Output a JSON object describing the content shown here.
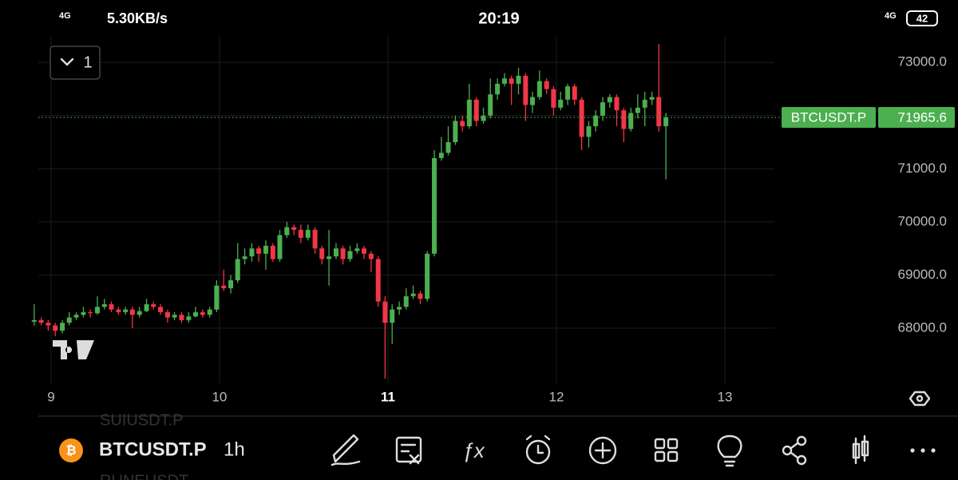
{
  "status_bar": {
    "network": "4G",
    "speed": "5.30KB/s",
    "time": "20:19",
    "network_right": "4G",
    "battery": "42"
  },
  "toolbar": {
    "interval_button": "1",
    "symbol": "BTCUSDT.P",
    "interval": "1h",
    "ghost_above": "SUIUSDT.P",
    "ghost_below": "RUNEUSDT"
  },
  "chart_data": {
    "type": "candlestick",
    "up_color": "#4caf50",
    "down_color": "#f23645",
    "grid": true,
    "xlim": [
      8.697,
      13.294
    ],
    "xticks": [
      9,
      10,
      11,
      12,
      13
    ],
    "bold_xtick": 11,
    "ylim": [
      66960,
      73500
    ],
    "yticks": [
      {
        "value": 68000,
        "label": "68000.0"
      },
      {
        "value": 69000,
        "label": "69000.0"
      },
      {
        "value": 70000,
        "label": "70000.0"
      },
      {
        "value": 71000,
        "label": "71000.0"
      },
      {
        "value": 72000,
        "label": "72000.0"
      },
      {
        "value": 73000,
        "label": "73000.0"
      }
    ],
    "price_line": {
      "value": 71965.6,
      "label": "BTCUSDT.P",
      "color": "#4caf50"
    },
    "x": [
      8.9,
      8.942,
      8.983,
      9.025,
      9.067,
      9.108,
      9.15,
      9.192,
      9.233,
      9.275,
      9.317,
      9.358,
      9.4,
      9.442,
      9.483,
      9.525,
      9.567,
      9.608,
      9.65,
      9.692,
      9.733,
      9.775,
      9.817,
      9.858,
      9.9,
      9.942,
      9.983,
      10.025,
      10.067,
      10.108,
      10.15,
      10.192,
      10.233,
      10.275,
      10.317,
      10.358,
      10.4,
      10.442,
      10.483,
      10.525,
      10.567,
      10.608,
      10.65,
      10.692,
      10.733,
      10.775,
      10.817,
      10.858,
      10.9,
      10.942,
      10.983,
      11.025,
      11.067,
      11.108,
      11.15,
      11.192,
      11.233,
      11.275,
      11.317,
      11.358,
      11.4,
      11.442,
      11.483,
      11.525,
      11.567,
      11.608,
      11.65,
      11.692,
      11.733,
      11.775,
      11.817,
      11.858,
      11.9,
      11.942,
      11.983,
      12.025,
      12.067,
      12.108,
      12.15,
      12.192,
      12.233,
      12.275,
      12.317,
      12.358,
      12.4,
      12.442,
      12.483,
      12.525,
      12.567,
      12.608,
      12.65
    ],
    "open": [
      68120,
      68150,
      68100,
      68050,
      67950,
      68100,
      68200,
      68250,
      68300,
      68280,
      68400,
      68450,
      68350,
      68300,
      68350,
      68250,
      68320,
      68450,
      68400,
      68300,
      68200,
      68250,
      68150,
      68220,
      68300,
      68250,
      68350,
      68800,
      68750,
      68900,
      69300,
      69350,
      69500,
      69400,
      69550,
      69300,
      69750,
      69900,
      69850,
      69700,
      69850,
      69500,
      69300,
      69350,
      69500,
      69300,
      69450,
      69500,
      69400,
      69300,
      68500,
      68100,
      68350,
      68400,
      68600,
      68650,
      68550,
      69400,
      71200,
      71300,
      71500,
      71900,
      71800,
      72300,
      71900,
      72000,
      72400,
      72600,
      72700,
      72600,
      72750,
      72200,
      72350,
      72650,
      72500,
      72150,
      72300,
      72550,
      72300,
      71600,
      71800,
      72000,
      72250,
      72350,
      72100,
      71750,
      72050,
      72150,
      72300,
      72350,
      71800
    ],
    "high": [
      68450,
      68200,
      68150,
      68100,
      68150,
      68300,
      68300,
      68400,
      68350,
      68600,
      68550,
      68500,
      68400,
      68400,
      68400,
      68400,
      68550,
      68500,
      68450,
      68350,
      68300,
      68300,
      68300,
      68400,
      68350,
      68400,
      68900,
      69100,
      69000,
      69600,
      69500,
      69600,
      69550,
      69650,
      69600,
      69850,
      70000,
      69950,
      69950,
      69950,
      69900,
      69550,
      69850,
      69600,
      69550,
      69550,
      69600,
      69550,
      69450,
      69350,
      68600,
      68450,
      68500,
      68750,
      68800,
      68700,
      69450,
      71350,
      71600,
      71800,
      72000,
      72000,
      72600,
      72350,
      72150,
      72700,
      72700,
      72800,
      72750,
      72900,
      72800,
      72450,
      72850,
      72700,
      72550,
      72450,
      72600,
      72600,
      72350,
      71900,
      72100,
      72350,
      72400,
      72400,
      72150,
      72150,
      72400,
      72450,
      72450,
      73350,
      72050
    ],
    "low": [
      68050,
      68050,
      67950,
      67850,
      67900,
      68050,
      68150,
      68200,
      68200,
      68250,
      68350,
      68300,
      68250,
      68250,
      68000,
      68200,
      68300,
      68350,
      68250,
      68100,
      68150,
      68100,
      68100,
      68200,
      68200,
      68200,
      68300,
      68700,
      68650,
      68850,
      69200,
      69250,
      69250,
      69100,
      69250,
      69250,
      69700,
      69750,
      69600,
      69650,
      69400,
      69200,
      68800,
      69300,
      69200,
      69250,
      69400,
      69300,
      69050,
      68400,
      67050,
      67700,
      68250,
      68350,
      68550,
      68450,
      68500,
      69350,
      71150,
      71250,
      71450,
      71700,
      71750,
      71800,
      71850,
      71950,
      72300,
      72550,
      72200,
      72400,
      71900,
      72050,
      72300,
      72400,
      72000,
      72100,
      72200,
      72200,
      71350,
      71400,
      71700,
      71900,
      72150,
      71800,
      71500,
      71700,
      71950,
      71800,
      72200,
      71700,
      70800
    ],
    "close": [
      68150,
      68100,
      68050,
      67950,
      68100,
      68200,
      68250,
      68300,
      68280,
      68400,
      68450,
      68350,
      68300,
      68350,
      68250,
      68320,
      68450,
      68400,
      68300,
      68200,
      68250,
      68150,
      68220,
      68300,
      68250,
      68350,
      68800,
      68750,
      68900,
      69300,
      69350,
      69500,
      69400,
      69550,
      69300,
      69750,
      69900,
      69850,
      69700,
      69850,
      69500,
      69300,
      69350,
      69500,
      69300,
      69450,
      69500,
      69400,
      69300,
      68500,
      68100,
      68350,
      68400,
      68600,
      68650,
      68550,
      69400,
      71200,
      71300,
      71500,
      71900,
      71800,
      72300,
      71900,
      72000,
      72400,
      72600,
      72700,
      72600,
      72750,
      72200,
      72350,
      72650,
      72500,
      72150,
      72300,
      72550,
      72300,
      71600,
      71800,
      72000,
      72250,
      72350,
      72100,
      71750,
      72050,
      72150,
      72300,
      72350,
      71800,
      71965.6
    ]
  }
}
